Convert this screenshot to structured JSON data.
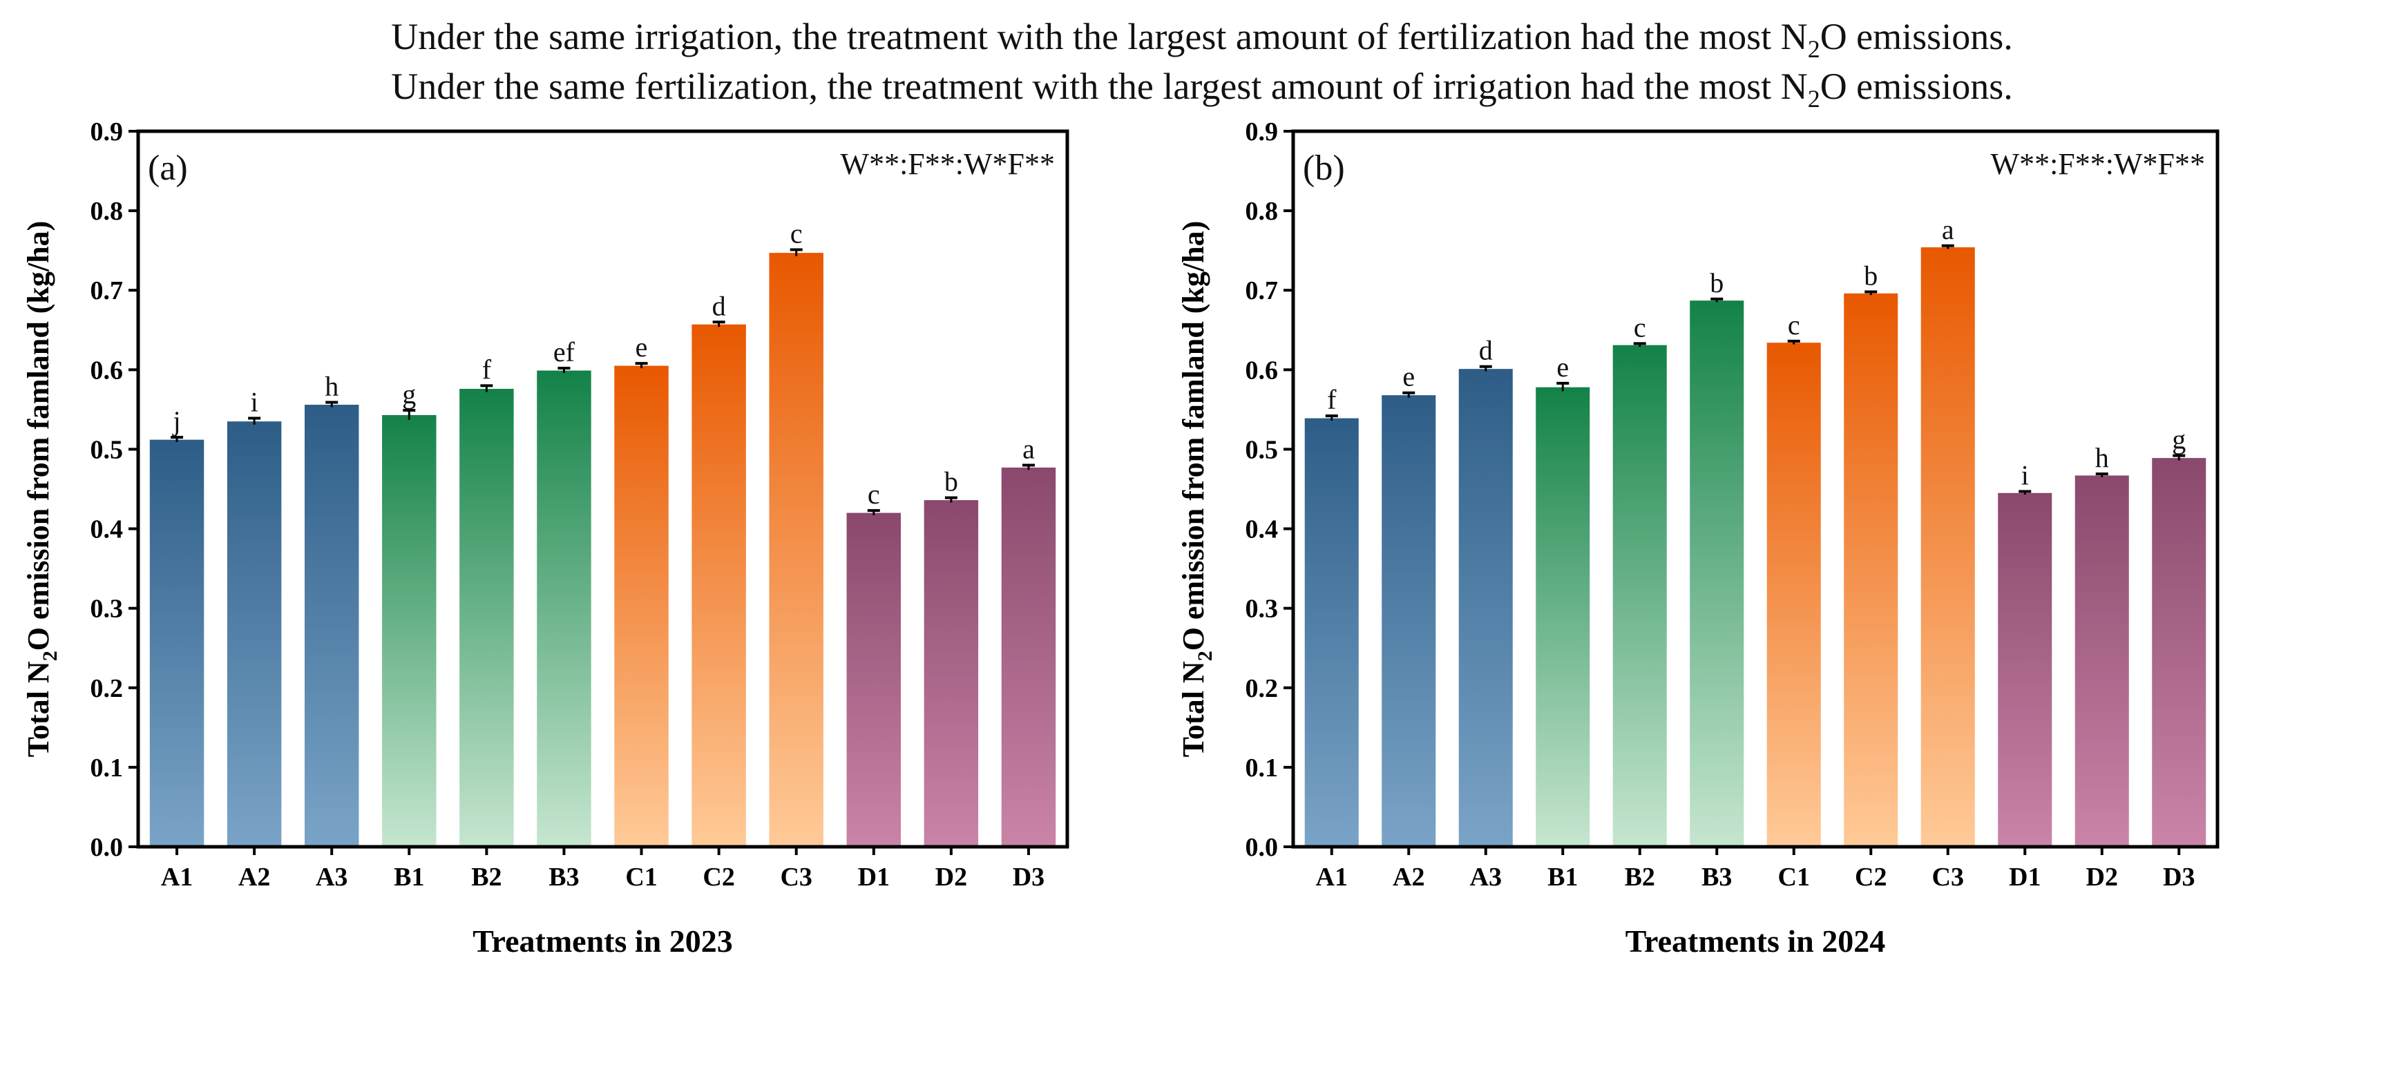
{
  "captions": {
    "line1_pre": "Under the same irrigation, the treatment with the largest amount of fertilization had the most N",
    "line1_sub": "2",
    "line1_post": "O emissions.",
    "line2_pre": "Under the same fertilization, the treatment with the largest amount of irrigation had the most N",
    "line2_sub": "2",
    "line2_post": "O emissions."
  },
  "colors": {
    "A": [
      "#2d5d87",
      "#7aa4c7"
    ],
    "B": [
      "#138248",
      "#c6e6cf"
    ],
    "C": [
      "#e85800",
      "#ffca98"
    ],
    "D": [
      "#8a496c",
      "#c984a7"
    ]
  },
  "chart_data": [
    {
      "type": "bar",
      "panel_label": "(a)",
      "annotation": "W**:F**:W*F**",
      "xlabel": "Treatments in 2023",
      "ylabel_pre": "Total N",
      "ylabel_sub": "2",
      "ylabel_post": "O emission from famland (kg/ha)",
      "ylim": [
        0,
        0.9
      ],
      "yticks": [
        "0.0",
        "0.1",
        "0.2",
        "0.3",
        "0.4",
        "0.5",
        "0.6",
        "0.7",
        "0.8",
        "0.9"
      ],
      "categories": [
        "A1",
        "A2",
        "A3",
        "B1",
        "B2",
        "B3",
        "C1",
        "C2",
        "C3",
        "D1",
        "D2",
        "D3"
      ],
      "values": [
        0.512,
        0.535,
        0.556,
        0.543,
        0.576,
        0.599,
        0.605,
        0.657,
        0.747,
        0.42,
        0.436,
        0.477
      ],
      "errors": [
        0.003,
        0.004,
        0.003,
        0.006,
        0.004,
        0.003,
        0.003,
        0.003,
        0.004,
        0.003,
        0.003,
        0.003
      ],
      "letters": [
        "j",
        "i",
        "h",
        "g",
        "f",
        "ef",
        "e",
        "d",
        "c",
        "c",
        "b",
        "a"
      ]
    },
    {
      "type": "bar",
      "panel_label": "(b)",
      "annotation": "W**:F**:W*F**",
      "xlabel": "Treatments in 2024",
      "ylabel_pre": "Total N",
      "ylabel_sub": "2",
      "ylabel_post": "O emission from famland (kg/ha)",
      "ylim": [
        0,
        0.9
      ],
      "yticks": [
        "0.0",
        "0.1",
        "0.2",
        "0.3",
        "0.4",
        "0.5",
        "0.6",
        "0.7",
        "0.8",
        "0.9"
      ],
      "categories": [
        "A1",
        "A2",
        "A3",
        "B1",
        "B2",
        "B3",
        "C1",
        "C2",
        "C3",
        "D1",
        "D2",
        "D3"
      ],
      "values": [
        0.539,
        0.568,
        0.601,
        0.578,
        0.631,
        0.687,
        0.634,
        0.696,
        0.754,
        0.445,
        0.467,
        0.489
      ],
      "errors": [
        0.003,
        0.003,
        0.003,
        0.005,
        0.002,
        0.002,
        0.002,
        0.002,
        0.002,
        0.002,
        0.002,
        0.003
      ],
      "letters": [
        "f",
        "e",
        "d",
        "e",
        "c",
        "b",
        "c",
        "b",
        "a",
        "i",
        "h",
        "g"
      ]
    }
  ]
}
